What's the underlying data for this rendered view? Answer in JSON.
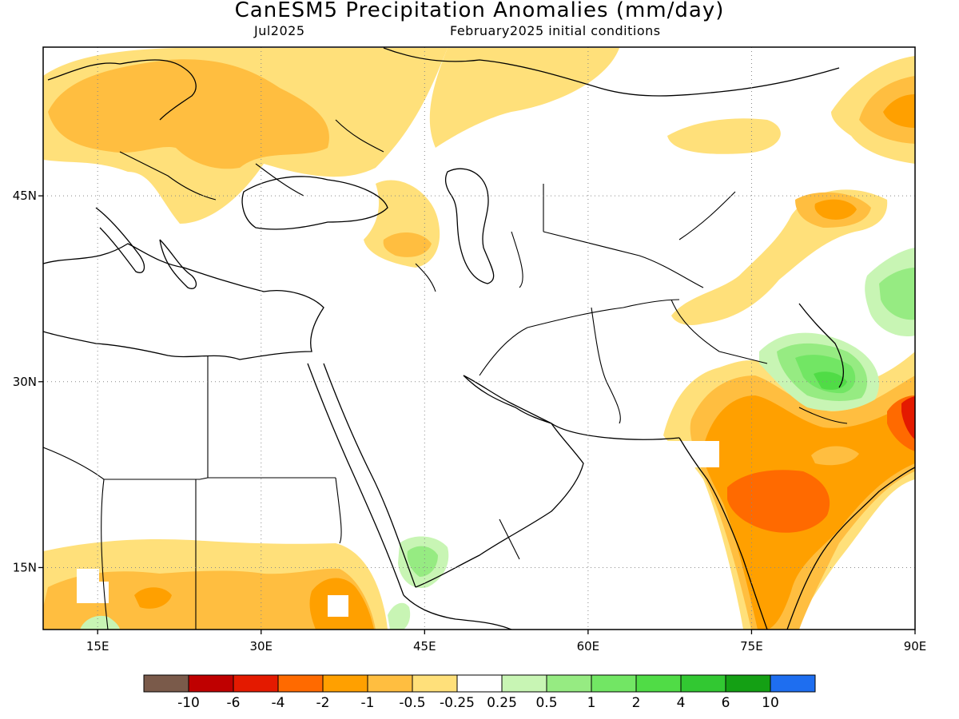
{
  "header": {
    "title": "CanESM5 Precipitation Anomalies (mm/day)",
    "valid_month": "Jul2025",
    "init": "February2025 initial conditions"
  },
  "map": {
    "lon_range": [
      10,
      90
    ],
    "lat_range": [
      10,
      57
    ],
    "lon_ticks": [
      {
        "value": 15,
        "label": "15E"
      },
      {
        "value": 30,
        "label": "30E"
      },
      {
        "value": 45,
        "label": "45E"
      },
      {
        "value": 60,
        "label": "60E"
      },
      {
        "value": 75,
        "label": "75E"
      },
      {
        "value": 90,
        "label": "90E"
      }
    ],
    "lat_ticks": [
      {
        "value": 45,
        "label": "45N"
      },
      {
        "value": 30,
        "label": "30N"
      },
      {
        "value": 15,
        "label": "15N"
      }
    ],
    "gridlines": "dotted"
  },
  "colorbar": {
    "colors": [
      "#7a5a4a",
      "#bf0000",
      "#e41a00",
      "#ff6a00",
      "#ffa000",
      "#ffbe40",
      "#ffe07a",
      "#ffffff",
      "#c8f5b4",
      "#96eb82",
      "#72e664",
      "#50dc46",
      "#32c832",
      "#14a014",
      "#1e6ef0"
    ],
    "labels": [
      "-10",
      "-6",
      "-4",
      "-2",
      "-1",
      "-0.5",
      "-0.25",
      "0.25",
      "0.5",
      "1",
      "2",
      "4",
      "6",
      "10"
    ]
  }
}
